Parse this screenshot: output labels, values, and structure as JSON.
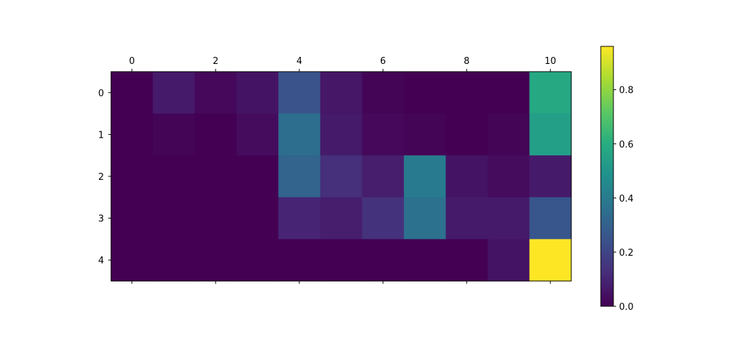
{
  "chart_data": [
    {
      "type": "heatmap",
      "colormap": "viridis",
      "rows": 5,
      "cols": 11,
      "x_ticks": [
        "0",
        "2",
        "4",
        "6",
        "8",
        "10"
      ],
      "x_tick_positions": [
        0,
        2,
        4,
        6,
        8,
        10
      ],
      "x_ticks_on_top": true,
      "y_ticks": [
        "0",
        "1",
        "2",
        "3",
        "4"
      ],
      "y_tick_positions": [
        0,
        1,
        2,
        3,
        4
      ],
      "values": [
        [
          0.0,
          0.07,
          0.02,
          0.05,
          0.25,
          0.06,
          0.01,
          0.0,
          0.0,
          0.0,
          0.58
        ],
        [
          0.0,
          0.01,
          0.0,
          0.03,
          0.35,
          0.07,
          0.02,
          0.01,
          0.0,
          0.01,
          0.54
        ],
        [
          0.0,
          0.0,
          0.0,
          0.0,
          0.31,
          0.13,
          0.08,
          0.4,
          0.05,
          0.03,
          0.07
        ],
        [
          0.0,
          0.0,
          0.0,
          0.0,
          0.1,
          0.08,
          0.14,
          0.36,
          0.07,
          0.07,
          0.26
        ],
        [
          0.0,
          0.0,
          0.0,
          0.0,
          0.0,
          0.0,
          0.0,
          0.0,
          0.0,
          0.05,
          0.96
        ]
      ],
      "title": "",
      "xlabel": "",
      "ylabel": ""
    },
    {
      "type": "colorbar",
      "range": [
        0.0,
        0.96
      ],
      "ticks": [
        0.0,
        0.2,
        0.4,
        0.6,
        0.8
      ],
      "tick_labels": [
        "0.0",
        "0.2",
        "0.4",
        "0.6",
        "0.8"
      ]
    }
  ]
}
